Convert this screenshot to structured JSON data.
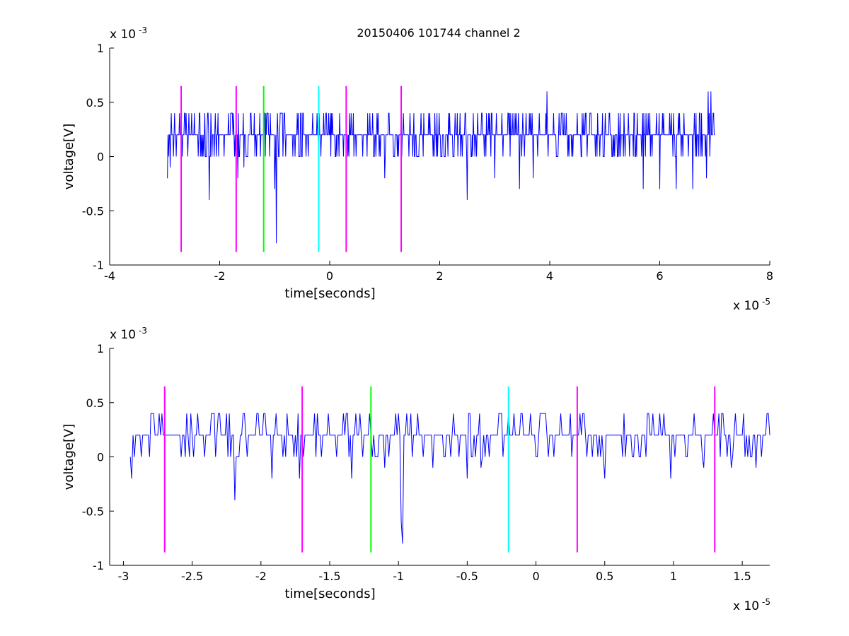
{
  "figure": {
    "title": "20150406 101744 channel 2"
  },
  "chart_data": [
    {
      "type": "line",
      "title": "20150406 101744 channel 2",
      "xlabel": "time[seconds]",
      "ylabel": "voltage[V]",
      "x_exponent_label": "x 10",
      "x_exponent": "-5",
      "y_exponent_label": "x 10",
      "y_exponent": "-3",
      "xlim": [
        -4e-05,
        8e-05
      ],
      "ylim": [
        -0.001,
        0.001
      ],
      "xticks": [
        -4e-05,
        -2e-05,
        0,
        2e-05,
        4e-05,
        6e-05,
        8e-05
      ],
      "xtick_labels": [
        "-4",
        "-2",
        "0",
        "2",
        "4",
        "6",
        "8"
      ],
      "yticks": [
        -0.001,
        -0.0005,
        0,
        0.0005,
        0.001
      ],
      "ytick_labels": [
        "-1",
        "-0.5",
        "0",
        "0.5",
        "1"
      ],
      "grid": false,
      "signal": {
        "color": "#0000ff",
        "x_start": -2.95e-05,
        "x_end": 7e-05,
        "dt": 1e-07,
        "levels": [
          0,
          0.0002,
          0.0004
        ],
        "dips": [
          {
            "x": -2.95e-05,
            "y": -0.0002
          },
          {
            "x": -2.9e-05,
            "y": -0.0001
          },
          {
            "x": -2.19e-05,
            "y": -0.0004
          },
          {
            "x": -1.67e-05,
            "y": -0.0002
          },
          {
            "x": -1.56e-05,
            "y": -0.0001
          },
          {
            "x": -1e-05,
            "y": -0.0003
          },
          {
            "x": -9.7e-06,
            "y": -0.0008
          },
          {
            "x": 1e-05,
            "y": -0.0002
          },
          {
            "x": 2.5e-05,
            "y": -0.0004
          },
          {
            "x": 3e-05,
            "y": -0.0002
          },
          {
            "x": 3.45e-05,
            "y": -0.0003
          },
          {
            "x": 3.7e-05,
            "y": -0.0002
          },
          {
            "x": 5.7e-05,
            "y": -0.0003
          },
          {
            "x": 6e-05,
            "y": -0.0003
          },
          {
            "x": 6.3e-05,
            "y": -0.0003
          },
          {
            "x": 6.6e-05,
            "y": -0.0003
          },
          {
            "x": 6.85e-05,
            "y": -0.0002
          }
        ],
        "peaks": [
          {
            "x": 3.95e-05,
            "y": 0.0006
          },
          {
            "x": 6.88e-05,
            "y": 0.0006
          },
          {
            "x": 6.93e-05,
            "y": 0.0006
          }
        ]
      },
      "markers": [
        {
          "x": -2.7e-05,
          "color": "#ff00ff",
          "y_range": [
            -0.00088,
            0.00065
          ]
        },
        {
          "x": -1.7e-05,
          "color": "#ff00ff",
          "y_range": [
            -0.00088,
            0.00065
          ]
        },
        {
          "x": -1.2e-05,
          "color": "#00ff00",
          "y_range": [
            -0.00088,
            0.00065
          ]
        },
        {
          "x": -2e-06,
          "color": "#00ffff",
          "y_range": [
            -0.00088,
            0.00065
          ]
        },
        {
          "x": 3e-06,
          "color": "#ff00ff",
          "y_range": [
            -0.00088,
            0.00065
          ]
        },
        {
          "x": 1.3e-05,
          "color": "#ff00ff",
          "y_range": [
            -0.00088,
            0.00065
          ]
        }
      ]
    },
    {
      "type": "line",
      "title": "",
      "xlabel": "time[seconds]",
      "ylabel": "voltage[V]",
      "x_exponent_label": "x 10",
      "x_exponent": "-5",
      "y_exponent_label": "x 10",
      "y_exponent": "-3",
      "xlim": [
        -3.1e-05,
        1.7e-05
      ],
      "ylim": [
        -0.001,
        0.001
      ],
      "xticks": [
        -3e-05,
        -2.5e-05,
        -2e-05,
        -1.5e-05,
        -1e-05,
        -5e-06,
        0,
        5e-06,
        1e-05,
        1.5e-05
      ],
      "xtick_labels": [
        "-3",
        "-2.5",
        "-2",
        "-1.5",
        "-1",
        "-0.5",
        "0",
        "0.5",
        "1",
        "1.5"
      ],
      "yticks": [
        -0.001,
        -0.0005,
        0,
        0.0005,
        0.001
      ],
      "ytick_labels": [
        "-1",
        "-0.5",
        "0",
        "0.5",
        "1"
      ],
      "grid": false,
      "signal": {
        "color": "#0000ff",
        "x_start": -2.95e-05,
        "x_end": 1.7e-05,
        "dt": 1e-07,
        "levels": [
          0,
          0.0002,
          0.0004
        ],
        "dips": [
          {
            "x": -2.94e-05,
            "y": -0.0002
          },
          {
            "x": -2.19e-05,
            "y": -0.0004
          },
          {
            "x": -1.92e-05,
            "y": -0.0002
          },
          {
            "x": -1.72e-05,
            "y": -0.0002
          },
          {
            "x": -1.34e-05,
            "y": -0.0002
          },
          {
            "x": -1.1e-05,
            "y": -0.0001
          },
          {
            "x": -9.8e-06,
            "y": -0.0006
          },
          {
            "x": -9.7e-06,
            "y": -0.0008
          },
          {
            "x": -7.5e-06,
            "y": -0.0001
          },
          {
            "x": -5e-06,
            "y": -0.0002
          },
          {
            "x": -4e-06,
            "y": -0.0001
          },
          {
            "x": 5e-06,
            "y": -0.0002
          },
          {
            "x": 9.8e-06,
            "y": -0.0002
          },
          {
            "x": 1.22e-05,
            "y": -0.0001
          },
          {
            "x": 1.42e-05,
            "y": -0.0001
          },
          {
            "x": 1.6e-05,
            "y": -0.0001
          }
        ],
        "peaks": []
      },
      "markers": [
        {
          "x": -2.7e-05,
          "color": "#ff00ff",
          "y_range": [
            -0.00088,
            0.00065
          ]
        },
        {
          "x": -1.7e-05,
          "color": "#ff00ff",
          "y_range": [
            -0.00088,
            0.00065
          ]
        },
        {
          "x": -1.2e-05,
          "color": "#00ff00",
          "y_range": [
            -0.00088,
            0.00065
          ]
        },
        {
          "x": -2e-06,
          "color": "#00ffff",
          "y_range": [
            -0.00088,
            0.00065
          ]
        },
        {
          "x": 3e-06,
          "color": "#ff00ff",
          "y_range": [
            -0.00088,
            0.00065
          ]
        },
        {
          "x": 1.3e-05,
          "color": "#ff00ff",
          "y_range": [
            -0.00088,
            0.00065
          ]
        }
      ]
    }
  ]
}
